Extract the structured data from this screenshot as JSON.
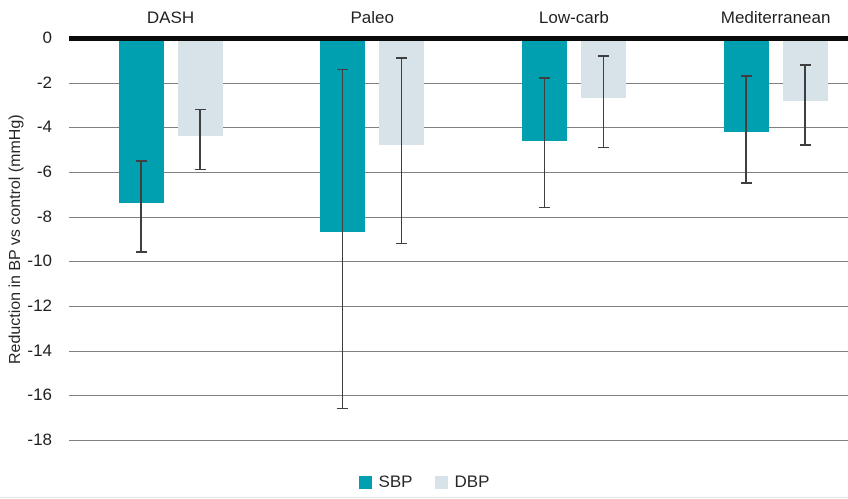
{
  "chart_data": {
    "type": "bar",
    "orientation": "vertical",
    "title": "",
    "xlabel": "",
    "ylabel": "Reduction in BP vs control (mmHg)",
    "units": "mmHg",
    "categories": [
      "DASH",
      "Paleo",
      "Low-carb",
      "Mediterranean"
    ],
    "series": [
      {
        "name": "SBP",
        "color": "#00a0b0",
        "values": [
          -7.4,
          -8.7,
          -4.6,
          -4.2
        ],
        "ci_high": [
          -5.5,
          -1.4,
          -1.8,
          -1.7
        ],
        "ci_low": [
          -9.6,
          -16.6,
          -7.6,
          -6.5
        ]
      },
      {
        "name": "DBP",
        "color": "#d7e3e9",
        "values": [
          -4.4,
          -4.8,
          -2.7,
          -2.8
        ],
        "ci_high": [
          -3.2,
          -0.9,
          -0.8,
          -1.2
        ],
        "ci_low": [
          -5.9,
          -9.2,
          -4.9,
          -4.8
        ]
      }
    ],
    "yticks": [
      0,
      -2,
      -4,
      -6,
      -8,
      -10,
      -12,
      -14,
      -16,
      -18
    ],
    "ylim": [
      0,
      -18
    ],
    "grid": true,
    "error_bars": true,
    "legend_position": "bottom"
  },
  "colors": {
    "sbp": "#00a0b0",
    "dbp": "#d7e3e9",
    "error_bar": "#3f3f3f",
    "gridline": "#808080",
    "zero_line": "#0a0a0a",
    "text": "#262626"
  }
}
